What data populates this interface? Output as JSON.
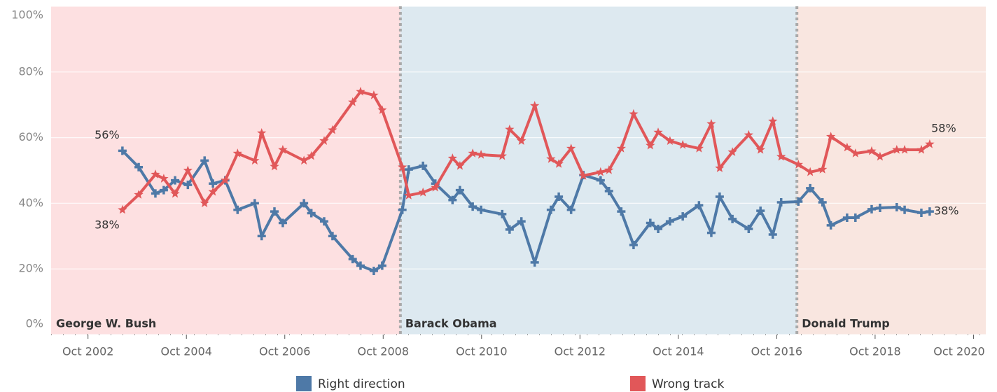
{
  "chart_data": {
    "type": "line",
    "xlim": [
      2002,
      2021
    ],
    "ylim": [
      0,
      100
    ],
    "yticks": [
      {
        "value": 0,
        "label": "0%"
      },
      {
        "value": 20,
        "label": "20%"
      },
      {
        "value": 40,
        "label": "40%"
      },
      {
        "value": 60,
        "label": "60%"
      },
      {
        "value": 80,
        "label": "80%"
      },
      {
        "value": 100,
        "label": "100%"
      }
    ],
    "xticks": [
      {
        "value": 2002.75,
        "label": "Oct 2002"
      },
      {
        "value": 2004.75,
        "label": "Oct 2004"
      },
      {
        "value": 2006.75,
        "label": "Oct 2006"
      },
      {
        "value": 2008.75,
        "label": "Oct 2008"
      },
      {
        "value": 2010.75,
        "label": "Oct 2010"
      },
      {
        "value": 2012.75,
        "label": "Oct 2012"
      },
      {
        "value": 2014.75,
        "label": "Oct 2014"
      },
      {
        "value": 2016.75,
        "label": "Oct 2016"
      },
      {
        "value": 2018.75,
        "label": "Oct 2018"
      },
      {
        "value": 2020.75,
        "label": "Oct 2020"
      }
    ],
    "grid": true,
    "eras": [
      {
        "name": "George W. Bush",
        "start": 2002,
        "end": 2009.1,
        "color": "#fde0e1"
      },
      {
        "name": "Barack Obama",
        "start": 2009.1,
        "end": 2017.16,
        "color": "#dde9f0"
      },
      {
        "name": "Donald Trump",
        "start": 2017.16,
        "end": 2021,
        "color": "#f9e6e0"
      }
    ],
    "x": [
      2003.45,
      2003.78,
      2004.12,
      2004.29,
      2004.52,
      2004.78,
      2005.12,
      2005.29,
      2005.54,
      2005.79,
      2006.14,
      2006.28,
      2006.54,
      2006.71,
      2007.14,
      2007.29,
      2007.55,
      2007.72,
      2008.13,
      2008.29,
      2008.56,
      2008.73,
      2009.14,
      2009.27,
      2009.56,
      2009.81,
      2010.16,
      2010.31,
      2010.57,
      2010.74,
      2011.17,
      2011.32,
      2011.56,
      2011.83,
      2012.16,
      2012.32,
      2012.57,
      2012.82,
      2013.17,
      2013.34,
      2013.59,
      2013.84,
      2014.18,
      2014.34,
      2014.58,
      2014.84,
      2015.17,
      2015.42,
      2015.59,
      2015.85,
      2016.18,
      2016.42,
      2016.67,
      2016.84,
      2017.19,
      2017.43,
      2017.68,
      2017.85,
      2018.18,
      2018.35,
      2018.68,
      2018.85,
      2019.19,
      2019.35,
      2019.69,
      2019.86
    ],
    "series": [
      {
        "name": "Right direction",
        "color": "#4e79a7",
        "marker": "plus",
        "values": [
          56,
          51,
          43,
          44,
          47,
          45.6,
          53,
          46,
          47,
          38,
          40,
          30,
          37.5,
          34,
          40,
          37,
          34.5,
          30,
          23,
          21,
          19.4,
          21,
          38,
          50.3,
          51.4,
          46,
          41,
          44,
          39,
          38,
          36.7,
          32,
          34.5,
          22,
          38,
          42,
          38,
          48.6,
          47,
          43.7,
          37.5,
          27.3,
          34,
          32.2,
          34.5,
          36,
          39.4,
          31,
          42,
          35.2,
          32.2,
          37.7,
          30.5,
          40.3,
          40.5,
          44.6,
          40.3,
          33.3,
          35.6,
          35.6,
          38.2,
          38.6,
          38.8,
          38,
          37.1,
          37.5
        ],
        "value_labels": [
          "56%",
          null,
          null,
          null,
          null,
          null,
          null,
          null,
          null,
          null,
          null,
          null,
          null,
          null,
          null,
          null,
          null,
          null,
          null,
          null,
          null,
          null,
          null,
          null,
          null,
          null,
          null,
          null,
          null,
          null,
          null,
          null,
          null,
          null,
          null,
          null,
          null,
          null,
          null,
          null,
          null,
          null,
          null,
          null,
          null,
          null,
          null,
          null,
          null,
          null,
          null,
          null,
          null,
          null,
          null,
          null,
          null,
          null,
          null,
          null,
          null,
          null,
          null,
          null,
          null,
          "38%"
        ]
      },
      {
        "name": "Wrong track",
        "color": "#e15759",
        "marker": "star",
        "values": [
          38,
          42.6,
          48.8,
          47.5,
          42.9,
          50,
          40,
          43.5,
          47,
          55.2,
          53,
          61.4,
          51.2,
          56.3,
          53,
          54.4,
          59,
          62.3,
          70.8,
          74,
          72.9,
          68.4,
          51,
          42.4,
          43.3,
          44.8,
          53.7,
          51.4,
          55.2,
          54.8,
          54.4,
          62.5,
          59,
          69.7,
          53.5,
          52,
          56.7,
          48.4,
          49.5,
          50.1,
          56.7,
          67.2,
          57.6,
          61.6,
          59,
          57.8,
          56.7,
          64.2,
          50.7,
          55.6,
          60.8,
          56.3,
          65,
          54.2,
          51.8,
          49.5,
          50.3,
          60.3,
          57,
          55.2,
          55.9,
          54.2,
          56.3,
          56.3,
          56.3,
          58
        ],
        "value_labels": [
          "38%",
          null,
          null,
          null,
          null,
          null,
          null,
          null,
          null,
          null,
          null,
          null,
          null,
          null,
          null,
          null,
          null,
          null,
          null,
          null,
          null,
          null,
          null,
          null,
          null,
          null,
          null,
          null,
          null,
          null,
          null,
          null,
          null,
          null,
          null,
          null,
          null,
          null,
          null,
          null,
          null,
          null,
          null,
          null,
          null,
          null,
          null,
          null,
          null,
          null,
          null,
          null,
          null,
          null,
          null,
          null,
          null,
          null,
          null,
          null,
          null,
          null,
          null,
          null,
          null,
          "58%"
        ]
      }
    ]
  }
}
